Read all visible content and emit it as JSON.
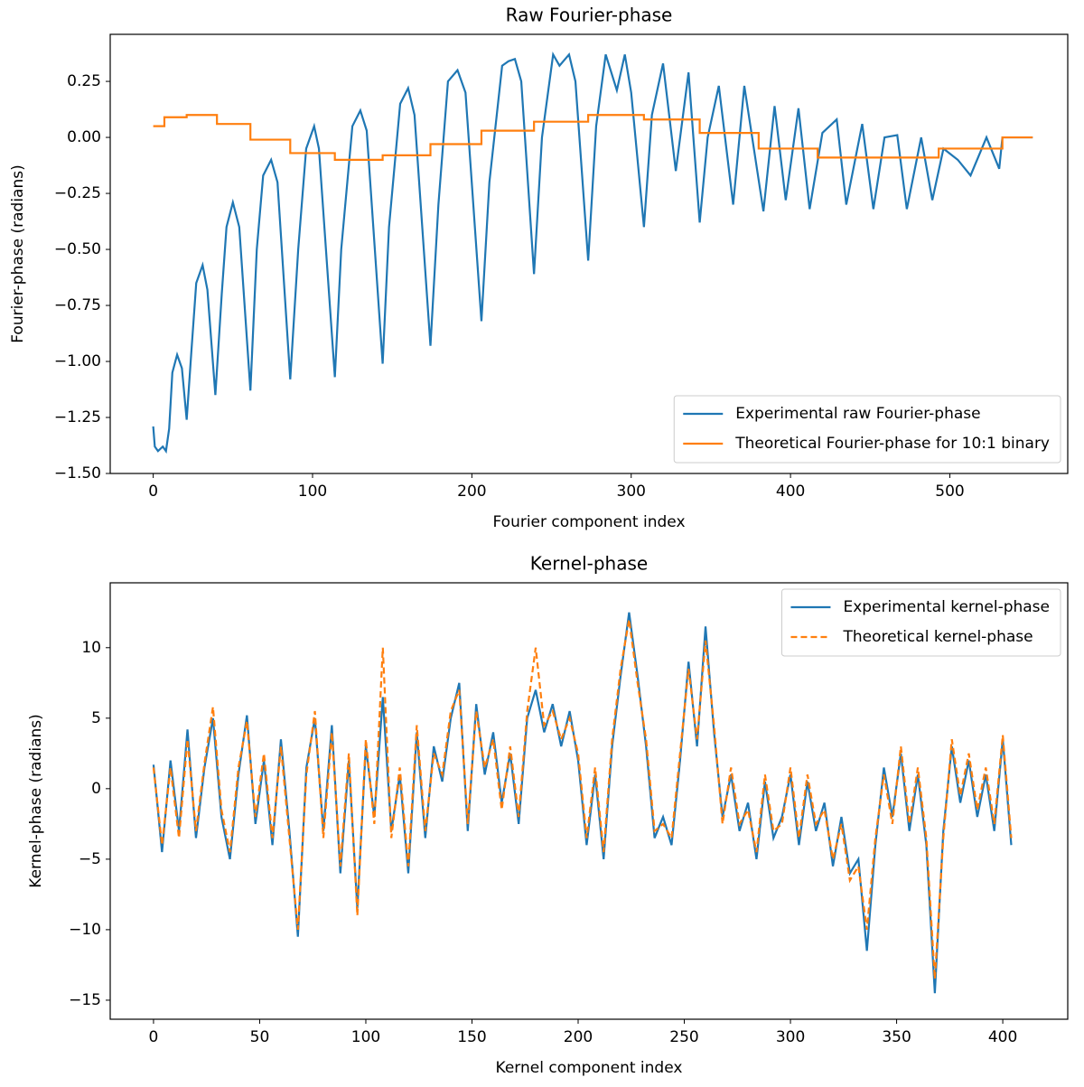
{
  "chart_data": [
    {
      "type": "line",
      "title": "Raw Fourier-phase",
      "x_label": "Fourier component index",
      "y_label": "Fourier-phase (radians)",
      "xlim": [
        -27,
        574
      ],
      "ylim": [
        -1.5,
        0.46
      ],
      "xticks": [
        0,
        100,
        200,
        300,
        400,
        500
      ],
      "yticks": [
        {
          "value": -1.5,
          "label": "−1.50"
        },
        {
          "value": -1.25,
          "label": "−1.25"
        },
        {
          "value": -1.0,
          "label": "−1.00"
        },
        {
          "value": -0.75,
          "label": "−0.75"
        },
        {
          "value": -0.5,
          "label": "−0.50"
        },
        {
          "value": -0.25,
          "label": "−0.25"
        },
        {
          "value": 0,
          "label": "0.00"
        },
        0.25
      ],
      "legend": "lower right",
      "series": [
        {
          "name": "Experimental raw Fourier-phase",
          "color": "#1f77b4",
          "dash": false,
          "x": [
            0,
            1,
            3,
            6,
            8,
            10,
            12,
            15,
            18,
            21,
            24,
            27,
            31,
            34,
            39,
            43,
            46,
            50,
            54,
            61,
            65,
            69,
            74,
            78,
            86,
            91,
            96,
            101,
            104,
            114,
            118,
            125,
            130,
            134,
            144,
            148,
            155,
            160,
            164,
            174,
            179,
            185,
            191,
            196,
            206,
            211,
            219,
            223,
            227,
            231,
            239,
            244,
            251,
            255,
            261,
            265,
            273,
            278,
            284,
            291,
            296,
            300,
            308,
            313,
            320,
            328,
            336,
            343,
            348,
            355,
            364,
            371,
            383,
            390,
            397,
            405,
            412,
            420,
            429,
            435,
            445,
            452,
            459,
            467,
            473,
            482,
            489,
            496,
            505,
            513,
            523,
            531,
            533,
            552
          ],
          "values": [
            -1.29,
            -1.38,
            -1.4,
            -1.38,
            -1.4,
            -1.3,
            -1.05,
            -0.97,
            -1.03,
            -1.26,
            -0.95,
            -0.65,
            -0.57,
            -0.68,
            -1.15,
            -0.7,
            -0.4,
            -0.29,
            -0.4,
            -1.13,
            -0.5,
            -0.17,
            -0.1,
            -0.2,
            -1.08,
            -0.5,
            -0.05,
            0.05,
            -0.05,
            -1.07,
            -0.5,
            0.05,
            0.12,
            0.03,
            -1.01,
            -0.4,
            0.15,
            0.22,
            0.1,
            -0.93,
            -0.3,
            0.25,
            0.3,
            0.2,
            -0.82,
            -0.2,
            0.32,
            0.34,
            0.35,
            0.25,
            -0.61,
            0.0,
            0.37,
            0.32,
            0.37,
            0.25,
            -0.55,
            0.05,
            0.37,
            0.21,
            0.37,
            0.2,
            -0.4,
            0.1,
            0.33,
            -0.15,
            0.29,
            -0.38,
            0.0,
            0.23,
            -0.3,
            0.23,
            -0.33,
            0.14,
            -0.28,
            0.13,
            -0.32,
            0.02,
            0.08,
            -0.3,
            0.06,
            -0.32,
            0.0,
            0.01,
            -0.32,
            0.0,
            -0.28,
            -0.05,
            -0.1,
            -0.17,
            0.0,
            -0.14,
            0.0,
            0.0
          ]
        },
        {
          "name": "Theoretical Fourier-phase for 10:1 binary",
          "color": "#ff7f0e",
          "dash": false,
          "x": [
            0,
            7,
            7,
            21,
            21,
            40,
            40,
            61,
            61,
            86,
            86,
            114,
            114,
            144,
            144,
            174,
            174,
            206,
            206,
            239,
            239,
            273,
            273,
            308,
            308,
            343,
            343,
            380,
            380,
            417,
            417,
            493,
            493,
            533,
            533,
            552
          ],
          "values": [
            0.05,
            0.05,
            0.09,
            0.09,
            0.1,
            0.1,
            0.06,
            0.06,
            -0.01,
            -0.01,
            -0.07,
            -0.07,
            -0.1,
            -0.1,
            -0.08,
            -0.08,
            -0.03,
            -0.03,
            0.03,
            0.03,
            0.07,
            0.07,
            0.1,
            0.1,
            0.08,
            0.08,
            0.02,
            0.02,
            -0.05,
            -0.05,
            -0.09,
            -0.09,
            -0.05,
            -0.05,
            0.0,
            0.0
          ]
        }
      ]
    },
    {
      "type": "line",
      "title": "Kernel-phase",
      "x_label": "Kernel component index",
      "y_label": "Kernel-phase (radians)",
      "xlim": [
        -20.4,
        430.6
      ],
      "ylim": [
        -16.35,
        14.6
      ],
      "xticks": [
        0,
        50,
        100,
        150,
        200,
        250,
        300,
        350,
        400
      ],
      "yticks": [
        {
          "value": -15,
          "label": "−15"
        },
        {
          "value": -10,
          "label": "−10"
        },
        {
          "value": -5,
          "label": "−5"
        },
        0,
        5,
        10
      ],
      "legend": "upper right",
      "x": [
        0,
        4,
        8,
        12,
        16,
        20,
        24,
        28,
        32,
        36,
        40,
        44,
        48,
        52,
        56,
        60,
        64,
        68,
        72,
        76,
        80,
        84,
        88,
        92,
        96,
        100,
        104,
        108,
        112,
        116,
        120,
        124,
        128,
        132,
        136,
        140,
        144,
        148,
        152,
        156,
        160,
        164,
        168,
        172,
        176,
        180,
        184,
        188,
        192,
        196,
        200,
        204,
        208,
        212,
        216,
        220,
        224,
        228,
        232,
        236,
        240,
        244,
        248,
        252,
        256,
        260,
        264,
        268,
        272,
        276,
        280,
        284,
        288,
        292,
        296,
        300,
        304,
        308,
        312,
        316,
        320,
        324,
        328,
        332,
        336,
        340,
        344,
        348,
        352,
        356,
        360,
        364,
        368,
        372,
        376,
        380,
        384,
        388,
        392,
        396,
        400,
        404
      ],
      "series": [
        {
          "name": "Experimental kernel-phase",
          "color": "#1f77b4",
          "dash": false,
          "values": [
            1.7,
            -4.5,
            2.0,
            -3.0,
            4.2,
            -3.5,
            1.5,
            5.0,
            -2.0,
            -5.0,
            1.0,
            5.2,
            -2.5,
            2.0,
            -4.0,
            3.5,
            -3.0,
            -10.5,
            1.5,
            5.0,
            -3.0,
            4.5,
            -6.0,
            2.0,
            -8.5,
            3.0,
            -2.0,
            6.5,
            -3.0,
            1.0,
            -6.0,
            4.0,
            -3.5,
            3.0,
            0.5,
            5.0,
            7.5,
            -3.0,
            6.0,
            1.0,
            4.0,
            -1.0,
            2.5,
            -2.5,
            5.0,
            7.0,
            4.0,
            6.0,
            3.0,
            5.5,
            2.0,
            -4.0,
            1.0,
            -5.0,
            3.0,
            8.0,
            12.5,
            8.0,
            3.0,
            -3.5,
            -2.0,
            -4.0,
            2.0,
            9.0,
            3.0,
            11.5,
            4.0,
            -2.0,
            1.0,
            -3.0,
            -1.0,
            -5.0,
            0.5,
            -3.5,
            -2.0,
            1.0,
            -4.0,
            0.5,
            -3.0,
            -1.0,
            -5.5,
            -2.0,
            -6.0,
            -5.0,
            -11.5,
            -4.0,
            1.5,
            -2.0,
            2.5,
            -3.0,
            1.0,
            -4.0,
            -14.5,
            -3.0,
            3.0,
            -1.0,
            2.0,
            -2.0,
            1.0,
            -3.0,
            3.5,
            -4.0
          ]
        },
        {
          "name": "Theoretical kernel-phase",
          "color": "#ff7f0e",
          "dash": true,
          "values": [
            1.5,
            -4.0,
            1.5,
            -3.5,
            3.5,
            -3.0,
            1.8,
            5.8,
            -1.5,
            -4.5,
            1.5,
            4.8,
            -2.0,
            2.5,
            -3.5,
            3.0,
            -3.5,
            -10.0,
            1.0,
            5.5,
            -3.5,
            4.0,
            -5.5,
            2.5,
            -9.0,
            3.5,
            -2.5,
            10.0,
            -3.5,
            1.5,
            -5.5,
            4.5,
            -3.0,
            2.5,
            1.0,
            5.5,
            7.0,
            -2.5,
            5.5,
            1.5,
            3.5,
            -1.5,
            3.0,
            -2.0,
            5.5,
            10.0,
            4.5,
            5.5,
            3.5,
            5.0,
            2.5,
            -3.5,
            1.5,
            -4.5,
            3.5,
            8.5,
            12.0,
            7.5,
            3.5,
            -3.0,
            -2.5,
            -3.5,
            2.5,
            8.5,
            3.5,
            10.5,
            4.5,
            -2.5,
            1.5,
            -2.5,
            -1.5,
            -4.5,
            1.0,
            -3.0,
            -2.5,
            1.5,
            -3.5,
            1.0,
            -2.5,
            -1.5,
            -5.0,
            -2.5,
            -6.5,
            -5.5,
            -10.0,
            -3.5,
            1.0,
            -2.5,
            3.0,
            -2.5,
            1.5,
            -3.5,
            -13.5,
            -3.5,
            3.5,
            -0.5,
            2.5,
            -1.5,
            1.5,
            -2.5,
            3.8,
            -3.5
          ]
        }
      ]
    }
  ]
}
